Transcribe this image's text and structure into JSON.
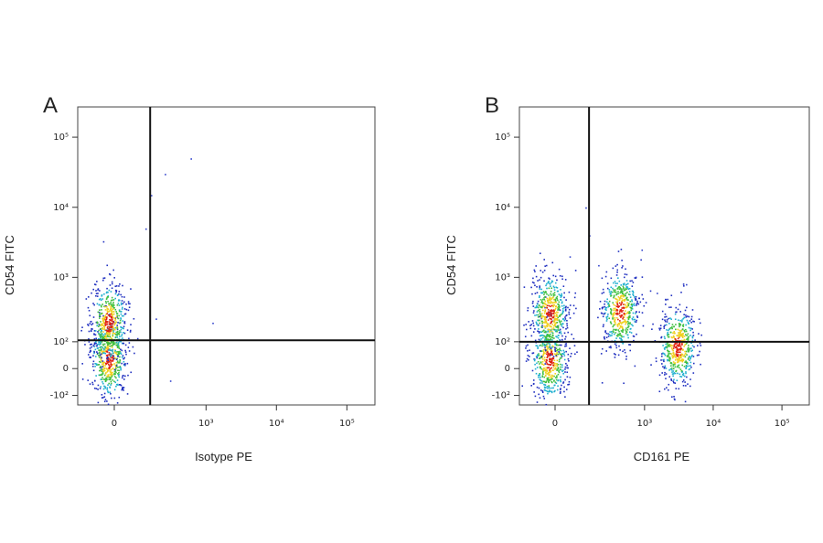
{
  "chart_data": [
    {
      "type": "scatter",
      "panel_label": "A",
      "x_label": "Isotype PE",
      "y_label": "CD54  FITC",
      "xscale": "biexponential",
      "yscale": "biexponential",
      "xlim": [
        -150,
        250000
      ],
      "ylim": [
        -150,
        270000
      ],
      "xticks": [
        0,
        {
          "value": 1000,
          "label": "10³"
        },
        {
          "value": 10000,
          "label": "10⁴"
        },
        {
          "value": 100000,
          "label": "10⁵"
        }
      ],
      "yticks": [
        {
          "value": -100,
          "label": "-10²"
        },
        0,
        {
          "value": 100,
          "label": "10²"
        },
        {
          "value": 1000,
          "label": "10³"
        },
        {
          "value": 10000,
          "label": "10⁴"
        },
        {
          "value": 100000,
          "label": "10⁵"
        }
      ],
      "gates": {
        "x": 146,
        "y": 107
      },
      "series": [
        {
          "kind": "density",
          "x": [
            -20,
            -20
          ],
          "y": [
            35,
            220
          ]
        },
        {
          "kind": "events",
          "color": "#3344cc",
          "x": [
            150,
            250,
            600,
            1230,
            300,
            120,
            180
          ],
          "y": [
            15000,
            30000,
            50000,
            215,
            -40,
            5000,
            250
          ]
        }
      ]
    },
    {
      "type": "scatter",
      "panel_label": "B",
      "x_label": "CD161 PE",
      "y_label": "CD54 FITC",
      "xscale": "biexponential",
      "yscale": "biexponential",
      "xlim": [
        -150,
        250000
      ],
      "ylim": [
        -150,
        270000
      ],
      "xticks": [
        0,
        {
          "value": 1000,
          "label": "10³"
        },
        {
          "value": 10000,
          "label": "10⁴"
        },
        {
          "value": 100000,
          "label": "10⁵"
        }
      ],
      "yticks": [
        {
          "value": -100,
          "label": "-10²"
        },
        0,
        {
          "value": 100,
          "label": "10²"
        },
        {
          "value": 1000,
          "label": "10³"
        },
        {
          "value": 10000,
          "label": "10⁴"
        },
        {
          "value": 100000,
          "label": "10⁵"
        }
      ],
      "gates": {
        "x": 140,
        "y": 100
      },
      "series": [
        {
          "kind": "density",
          "x": [
            -20,
            -20,
            430,
            3000
          ],
          "y": [
            30,
            300,
            330,
            80
          ]
        },
        {
          "kind": "events",
          "color": "#3344cc",
          "x": [
            120,
            140,
            900,
            1500,
            4000,
            200,
            50
          ],
          "y": [
            10000,
            4000,
            2500,
            600,
            800,
            1500,
            2000
          ]
        }
      ]
    }
  ]
}
